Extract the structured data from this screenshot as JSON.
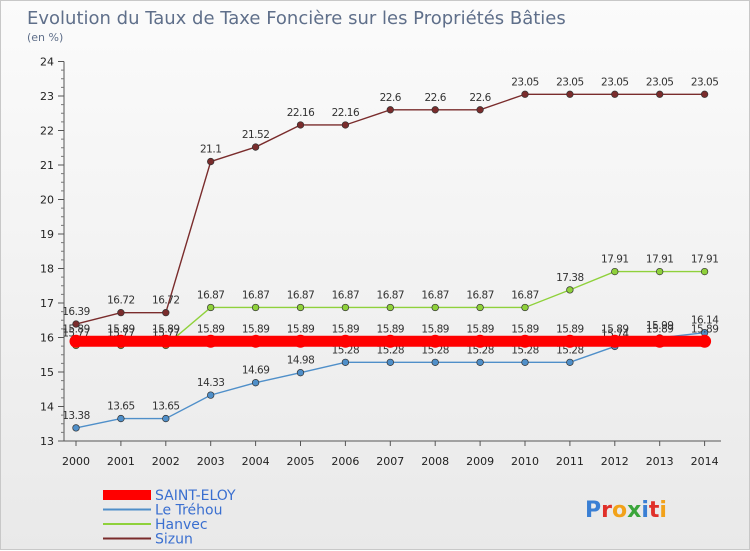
{
  "chart_data": {
    "type": "line",
    "title": "Evolution du Taux de Taxe Foncière sur les Propriétés Bâties",
    "subtitle": "(en %)",
    "xlabel": "",
    "ylabel": "",
    "categories": [
      "2000",
      "2001",
      "2002",
      "2003",
      "2004",
      "2005",
      "2006",
      "2007",
      "2008",
      "2009",
      "2010",
      "2011",
      "2012",
      "2013",
      "2014"
    ],
    "ylim": [
      13,
      24
    ],
    "yticks": [
      "13",
      "14",
      "15",
      "16",
      "17",
      "18",
      "19",
      "20",
      "21",
      "22",
      "23",
      "24"
    ],
    "grid": false,
    "legend_position": "bottom-left",
    "series": [
      {
        "name": "SAINT-ELOY",
        "color": "#ff0000",
        "values": [
          15.89,
          15.89,
          15.89,
          15.89,
          15.89,
          15.89,
          15.89,
          15.89,
          15.89,
          15.89,
          15.89,
          15.89,
          15.89,
          15.89,
          15.89
        ],
        "labels": [
          "15.89",
          "15.89",
          "15.89",
          "15.89",
          "15.89",
          "15.89",
          "15.89",
          "15.89",
          "15.89",
          "15.89",
          "15.89",
          "15.89",
          "15.89",
          "15.89",
          "15.89"
        ]
      },
      {
        "name": "Le Tréhou",
        "color": "#4f8fc9",
        "values": [
          13.38,
          13.65,
          13.65,
          14.33,
          14.69,
          14.98,
          15.28,
          15.28,
          15.28,
          15.28,
          15.28,
          15.28,
          15.74,
          15.99,
          16.14
        ],
        "labels": [
          "13.38",
          "13.65",
          "13.65",
          "14.33",
          "14.69",
          "14.98",
          "15.28",
          "15.28",
          "15.28",
          "15.28",
          "15.28",
          "15.28",
          "15.74",
          "15.99",
          "16.14"
        ]
      },
      {
        "name": "Hanvec",
        "color": "#8fd13b",
        "values": [
          15.77,
          15.77,
          15.77,
          16.87,
          16.87,
          16.87,
          16.87,
          16.87,
          16.87,
          16.87,
          16.87,
          17.38,
          17.91,
          17.91,
          17.91
        ],
        "labels": [
          "15.77",
          "15.77",
          "15.77",
          "16.87",
          "16.87",
          "16.87",
          "16.87",
          "16.87",
          "16.87",
          "16.87",
          "16.87",
          "17.38",
          "17.91",
          "17.91",
          "17.91"
        ]
      },
      {
        "name": "Sizun",
        "color": "#7a2c2c",
        "values": [
          16.39,
          16.72,
          16.72,
          21.1,
          21.52,
          22.16,
          22.16,
          22.6,
          22.6,
          22.6,
          23.05,
          23.05,
          23.05,
          23.05,
          23.05
        ],
        "labels": [
          "16.39",
          "16.72",
          "16.72",
          "21.1",
          "21.52",
          "22.16",
          "22.16",
          "22.6",
          "22.6",
          "22.6",
          "23.05",
          "23.05",
          "23.05",
          "23.05",
          "23.05"
        ]
      }
    ]
  },
  "branding": {
    "logo_text": "Proxiti"
  }
}
